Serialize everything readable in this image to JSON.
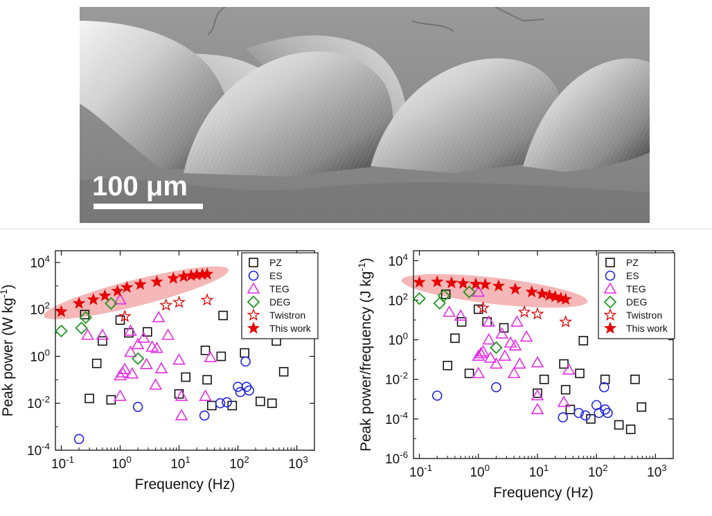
{
  "micrograph": {
    "scale_bar_label": "100 μm"
  },
  "chart_data": [
    {
      "type": "scatter",
      "panel": "left",
      "xlabel": "Frequency (Hz)",
      "ylabel_main": "Peak power (W kg",
      "ylabel_sup": "-1",
      "ylabel_tail": ")",
      "xscale": "log",
      "yscale": "log",
      "xlim": [
        0.0794,
        1995
      ],
      "ylim": [
        0.0001,
        31623
      ],
      "x_ticks": [
        {
          "base": "10",
          "exp": "-1",
          "value": 0.1
        },
        {
          "base": "10",
          "exp": "0",
          "value": 1
        },
        {
          "base": "10",
          "exp": "1",
          "value": 10
        },
        {
          "base": "10",
          "exp": "2",
          "value": 100
        },
        {
          "base": "10",
          "exp": "3",
          "value": 1000
        }
      ],
      "y_ticks": [
        {
          "base": "10",
          "exp": "-4",
          "value": 0.0001
        },
        {
          "base": "10",
          "exp": "-2",
          "value": 0.01
        },
        {
          "base": "10",
          "exp": "0",
          "value": 1
        },
        {
          "base": "10",
          "exp": "2",
          "value": 100
        },
        {
          "base": "10",
          "exp": "4",
          "value": 10000
        }
      ],
      "highlight": {
        "from": [
          0.1,
          80
        ],
        "to": [
          35,
          3200
        ]
      },
      "legend_position": "top-right",
      "series": [
        {
          "name": "PZ",
          "marker": "square",
          "color": "#111111",
          "points": [
            [
              0.25,
              60
            ],
            [
              0.3,
              0.016
            ],
            [
              0.4,
              0.5
            ],
            [
              0.5,
              4.5
            ],
            [
              0.7,
              0.014
            ],
            [
              1.0,
              35
            ],
            [
              1.4,
              10
            ],
            [
              2.9,
              11
            ],
            [
              10,
              0.025
            ],
            [
              13,
              0.13
            ],
            [
              28,
              1.8
            ],
            [
              30,
              0.1
            ],
            [
              36,
              0.008
            ],
            [
              52,
              1.0
            ],
            [
              56,
              55
            ],
            [
              80,
              0.008
            ],
            [
              130,
              1.4
            ],
            [
              240,
              0.012
            ],
            [
              380,
              0.01
            ],
            [
              450,
              4.5
            ],
            [
              600,
              0.22
            ]
          ]
        },
        {
          "name": "ES",
          "marker": "circle",
          "color": "#1d22e6",
          "points": [
            [
              0.2,
              0.0003
            ],
            [
              2.0,
              0.007
            ],
            [
              27,
              0.003
            ],
            [
              50,
              0.01
            ],
            [
              65,
              0.011
            ],
            [
              100,
              0.05
            ],
            [
              110,
              0.03
            ],
            [
              140,
              0.05
            ],
            [
              155,
              0.035
            ],
            [
              135,
              0.6
            ]
          ]
        },
        {
          "name": "TEG",
          "marker": "triangle",
          "color": "#e62ce6",
          "points": [
            [
              0.28,
              8
            ],
            [
              0.5,
              8
            ],
            [
              1.0,
              0.15
            ],
            [
              1.1,
              0.2
            ],
            [
              1.2,
              0.28
            ],
            [
              1.0,
              0.02
            ],
            [
              1.5,
              12
            ],
            [
              1.6,
              0.18
            ],
            [
              2.5,
              6
            ],
            [
              2.8,
              0.45
            ],
            [
              3.5,
              2.5
            ],
            [
              4.0,
              0.06
            ],
            [
              4.2,
              2.2
            ],
            [
              5.0,
              0.3
            ],
            [
              6.5,
              8
            ],
            [
              10,
              0.7
            ],
            [
              11,
              0.02
            ],
            [
              11,
              0.003
            ],
            [
              28,
              0.02
            ],
            [
              34,
              0.9
            ],
            [
              4.5,
              45
            ],
            [
              1.0,
              260
            ],
            [
              2.0,
              3.2
            ],
            [
              1.5,
              1.5
            ]
          ]
        },
        {
          "name": "DEG",
          "marker": "diamond",
          "color": "#1e9a1e",
          "points": [
            [
              0.1,
              12
            ],
            [
              0.22,
              16
            ],
            [
              0.26,
              45
            ],
            [
              0.7,
              180
            ],
            [
              2.0,
              0.8
            ]
          ]
        },
        {
          "name": "Twistron",
          "marker": "star-open",
          "color": "#e60000",
          "points": [
            [
              1.2,
              50
            ],
            [
              6.0,
              150
            ],
            [
              10,
              200
            ],
            [
              30,
              250
            ]
          ]
        },
        {
          "name": "This work",
          "marker": "star-filled",
          "color": "#e60000",
          "points": [
            [
              0.1,
              80
            ],
            [
              0.2,
              180
            ],
            [
              0.35,
              260
            ],
            [
              0.55,
              380
            ],
            [
              0.9,
              600
            ],
            [
              1.3,
              860
            ],
            [
              2.2,
              1150
            ],
            [
              4.2,
              1500
            ],
            [
              8.0,
              2100
            ],
            [
              12,
              2500
            ],
            [
              16,
              2750
            ],
            [
              20,
              2950
            ],
            [
              25,
              3100
            ],
            [
              30,
              3200
            ]
          ]
        }
      ]
    },
    {
      "type": "scatter",
      "panel": "right",
      "xlabel": "Frequency (Hz)",
      "ylabel_main": "Peak power/frequency (J kg",
      "ylabel_sup": "-1",
      "ylabel_tail": ")",
      "xscale": "log",
      "yscale": "log",
      "xlim": [
        0.0794,
        1995
      ],
      "ylim": [
        1e-06,
        31623
      ],
      "x_ticks": [
        {
          "base": "10",
          "exp": "-1",
          "value": 0.1
        },
        {
          "base": "10",
          "exp": "0",
          "value": 1
        },
        {
          "base": "10",
          "exp": "1",
          "value": 10
        },
        {
          "base": "10",
          "exp": "2",
          "value": 100
        },
        {
          "base": "10",
          "exp": "3",
          "value": 1000
        }
      ],
      "y_ticks": [
        {
          "base": "10",
          "exp": "-6",
          "value": 1e-06
        },
        {
          "base": "10",
          "exp": "-4",
          "value": 0.0001
        },
        {
          "base": "10",
          "exp": "-2",
          "value": 0.01
        },
        {
          "base": "10",
          "exp": "0",
          "value": 1
        },
        {
          "base": "10",
          "exp": "2",
          "value": 100
        },
        {
          "base": "10",
          "exp": "4",
          "value": 10000
        }
      ],
      "highlight": {
        "from": [
          0.1,
          800
        ],
        "to": [
          35,
          110
        ]
      },
      "legend_position": "top-right",
      "series": [
        {
          "name": "PZ",
          "marker": "square",
          "color": "#111111",
          "points": [
            [
              0.28,
              200
            ],
            [
              0.3,
              0.05
            ],
            [
              0.4,
              1.2
            ],
            [
              0.52,
              8
            ],
            [
              0.7,
              0.02
            ],
            [
              1.0,
              35
            ],
            [
              1.4,
              8
            ],
            [
              2.7,
              4
            ],
            [
              10,
              0.002
            ],
            [
              13,
              0.01
            ],
            [
              28,
              0.06
            ],
            [
              30,
              0.003
            ],
            [
              36,
              0.0003
            ],
            [
              52,
              0.02
            ],
            [
              60,
              0.9
            ],
            [
              80,
              0.0001
            ],
            [
              140,
              0.01
            ],
            [
              240,
              5e-05
            ],
            [
              380,
              3e-05
            ],
            [
              450,
              0.01
            ],
            [
              580,
              0.0004
            ]
          ]
        },
        {
          "name": "ES",
          "marker": "circle",
          "color": "#1d22e6",
          "points": [
            [
              0.2,
              0.0015
            ],
            [
              2.0,
              0.004
            ],
            [
              27,
              0.00012
            ],
            [
              50,
              0.0002
            ],
            [
              65,
              0.00015
            ],
            [
              100,
              0.0005
            ],
            [
              110,
              0.0002
            ],
            [
              140,
              0.0003
            ],
            [
              155,
              0.0002
            ],
            [
              135,
              0.004
            ]
          ]
        },
        {
          "name": "TEG",
          "marker": "triangle",
          "color": "#e62ce6",
          "points": [
            [
              0.32,
              25
            ],
            [
              0.5,
              16
            ],
            [
              1.0,
              0.15
            ],
            [
              1.1,
              0.2
            ],
            [
              1.2,
              0.25
            ],
            [
              1.0,
              0.02
            ],
            [
              1.5,
              8
            ],
            [
              1.6,
              0.12
            ],
            [
              2.5,
              2
            ],
            [
              2.8,
              0.15
            ],
            [
              3.5,
              0.7
            ],
            [
              4.0,
              0.02
            ],
            [
              4.2,
              0.5
            ],
            [
              5.0,
              0.06
            ],
            [
              6.5,
              1.4
            ],
            [
              10,
              0.07
            ],
            [
              10,
              0.0015
            ],
            [
              10,
              0.0003
            ],
            [
              28,
              0.0007
            ],
            [
              34,
              0.03
            ],
            [
              4.5,
              8
            ],
            [
              1.0,
              260
            ],
            [
              2.0,
              0.06
            ],
            [
              1.5,
              1
            ]
          ]
        },
        {
          "name": "DEG",
          "marker": "diamond",
          "color": "#1e9a1e",
          "points": [
            [
              0.1,
              120
            ],
            [
              0.22,
              70
            ],
            [
              0.26,
              170
            ],
            [
              0.7,
              260
            ],
            [
              2.0,
              0.4
            ]
          ]
        },
        {
          "name": "Twistron",
          "marker": "star-open",
          "color": "#e60000",
          "points": [
            [
              1.2,
              40
            ],
            [
              6.0,
              25
            ],
            [
              10,
              20
            ],
            [
              30,
              8
            ]
          ]
        },
        {
          "name": "This work",
          "marker": "star-filled",
          "color": "#e60000",
          "points": [
            [
              0.1,
              800
            ],
            [
              0.2,
              850
            ],
            [
              0.35,
              750
            ],
            [
              0.55,
              700
            ],
            [
              0.9,
              650
            ],
            [
              1.3,
              620
            ],
            [
              2.2,
              520
            ],
            [
              4.2,
              360
            ],
            [
              8.0,
              260
            ],
            [
              12,
              210
            ],
            [
              16,
              175
            ],
            [
              20,
              150
            ],
            [
              25,
              125
            ],
            [
              30,
              110
            ]
          ]
        }
      ]
    }
  ]
}
